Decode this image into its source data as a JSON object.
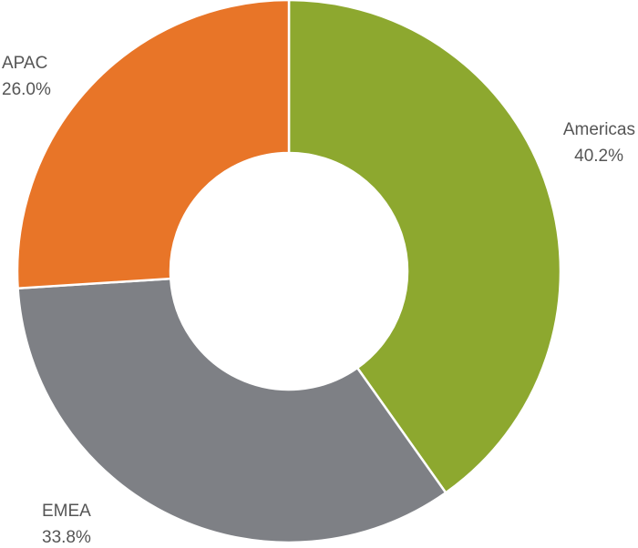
{
  "chart_data": {
    "type": "pie",
    "variant": "donut",
    "title": "",
    "legend": "none",
    "slices": [
      {
        "name": "Americas",
        "value": 40.2,
        "label": "40.2%",
        "color": "#8DA82F"
      },
      {
        "name": "EMEA",
        "value": 33.8,
        "label": "33.8%",
        "color": "#7E8085"
      },
      {
        "name": "APAC",
        "value": 26.0,
        "label": "26.0%",
        "color": "#E87528"
      }
    ],
    "start_angle": "12 o'clock",
    "direction": "clockwise",
    "separator_color": "#ffffff"
  }
}
